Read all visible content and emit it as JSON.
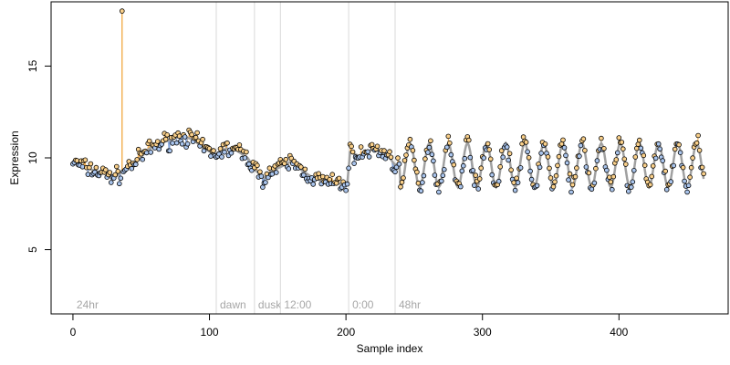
{
  "chart_data": {
    "type": "scatter",
    "xlabel": "Sample index",
    "ylabel": "Expression",
    "xlim": [
      -16,
      480
    ],
    "ylim": [
      1.5,
      18.5
    ],
    "xticks": [
      0,
      100,
      200,
      300,
      400
    ],
    "yticks": [
      5,
      10,
      15
    ],
    "grid": false,
    "colors": {
      "smooth_line": "#a0a0a0",
      "below_fill": "#6f94d3",
      "above_fill": "#f0a030",
      "point_above": "#fad08a",
      "point_below": "#a9c4ec",
      "region_line": "#d9d9d9",
      "region_text": "#a6a6a6"
    },
    "regions": [
      {
        "x": 0,
        "label": "24hr"
      },
      {
        "x": 105,
        "label": "dawn"
      },
      {
        "x": 133,
        "label": "dusk"
      },
      {
        "x": 152,
        "label": "12:00"
      },
      {
        "x": 202,
        "label": "0:00"
      },
      {
        "x": 236,
        "label": "48hr"
      }
    ],
    "outlier": {
      "x": 36,
      "y": 18.0
    },
    "smooth_anchors": [
      [
        0,
        9.8
      ],
      [
        8,
        9.5
      ],
      [
        16,
        9.3
      ],
      [
        24,
        9.1
      ],
      [
        32,
        9.0
      ],
      [
        40,
        9.5
      ],
      [
        48,
        9.9
      ],
      [
        56,
        10.5
      ],
      [
        64,
        10.8
      ],
      [
        72,
        11.0
      ],
      [
        80,
        11.2
      ],
      [
        88,
        11.0
      ],
      [
        96,
        10.5
      ],
      [
        104,
        10.2
      ],
      [
        112,
        10.5
      ],
      [
        120,
        10.4
      ],
      [
        128,
        10.0
      ],
      [
        134,
        9.3
      ],
      [
        140,
        8.9
      ],
      [
        146,
        9.3
      ],
      [
        152,
        9.5
      ],
      [
        160,
        9.8
      ],
      [
        168,
        9.3
      ],
      [
        176,
        8.9
      ],
      [
        184,
        8.7
      ],
      [
        192,
        8.6
      ],
      [
        201,
        8.6
      ],
      [
        203,
        10.3
      ],
      [
        210,
        10.1
      ],
      [
        220,
        10.5
      ],
      [
        230,
        10.2
      ],
      [
        236,
        9.6
      ],
      [
        240,
        9.8
      ]
    ],
    "oscillation": {
      "x_start": 240,
      "x_end": 462,
      "baseline": 9.6,
      "amplitude": 1.2,
      "period": 14,
      "phase": -1.5708
    },
    "point_noise": 0.35
  }
}
